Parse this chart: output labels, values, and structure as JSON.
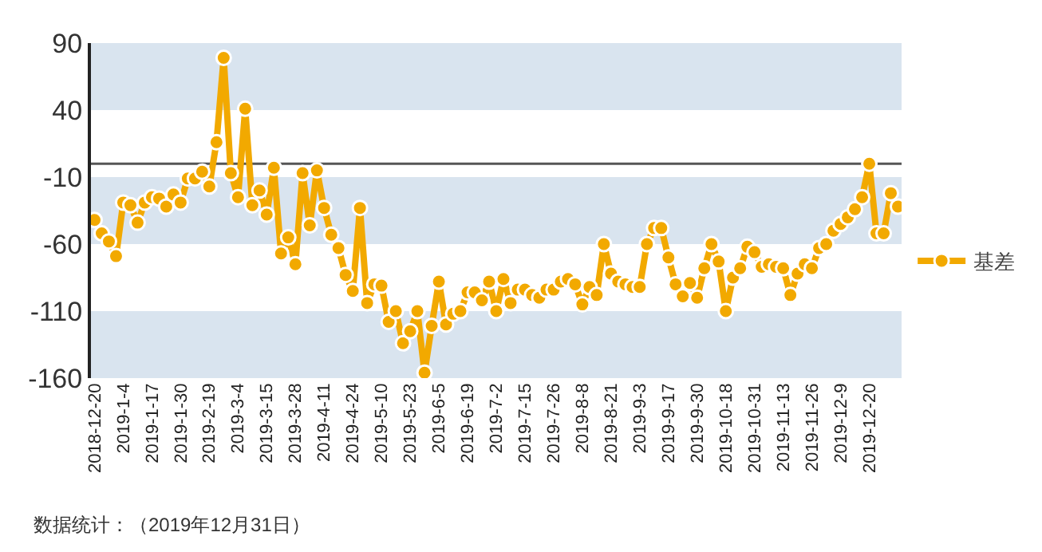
{
  "chart_data": {
    "type": "line",
    "categories": [
      "2018-12-20",
      null,
      null,
      null,
      "2019-1-4",
      null,
      null,
      null,
      "2019-1-17",
      null,
      null,
      null,
      "2019-1-30",
      null,
      null,
      null,
      "2019-2-19",
      null,
      null,
      null,
      "2019-3-4",
      null,
      null,
      null,
      "2019-3-15",
      null,
      null,
      null,
      "2019-3-28",
      null,
      null,
      null,
      "2019-4-11",
      null,
      null,
      null,
      "2019-4-24",
      null,
      null,
      null,
      "2019-5-10",
      null,
      null,
      null,
      "2019-5-23",
      null,
      null,
      null,
      "2019-6-5",
      null,
      null,
      null,
      "2019-6-19",
      null,
      null,
      null,
      "2019-7-2",
      null,
      null,
      null,
      "2019-7-15",
      null,
      null,
      null,
      "2019-7-26",
      null,
      null,
      null,
      "2019-8-8",
      null,
      null,
      null,
      "2019-8-21",
      null,
      null,
      null,
      "2019-9-3",
      null,
      null,
      null,
      "2019-9-17",
      null,
      null,
      null,
      "2019-9-30",
      null,
      null,
      null,
      "2019-10-18",
      null,
      null,
      null,
      "2019-10-31",
      null,
      null,
      null,
      "2019-11-13",
      null,
      null,
      null,
      "2019-11-26",
      null,
      null,
      null,
      "2019-12-9",
      null,
      null,
      null,
      "2019-12-20",
      null,
      null,
      null,
      null
    ],
    "series": [
      {
        "name": "基差",
        "color": "#f2a900",
        "values": [
          -42,
          -52,
          -58,
          -69,
          -29,
          -31,
          -44,
          -29,
          -25,
          -26,
          -32,
          -23,
          -29,
          -11,
          -11,
          -6,
          -17,
          16,
          79,
          -7,
          -25,
          41,
          -31,
          -20,
          -38,
          -3,
          -67,
          -55,
          -75,
          -7,
          -46,
          -5,
          -33,
          -53,
          -63,
          -83,
          -95,
          -33,
          -104,
          -90,
          -91,
          -118,
          -110,
          -134,
          -125,
          -110,
          -156,
          -121,
          -88,
          -120,
          -112,
          -110,
          -96,
          -96,
          -102,
          -88,
          -110,
          -86,
          -104,
          -94,
          -94,
          -98,
          -100,
          -94,
          -94,
          -88,
          -86,
          -90,
          -105,
          -92,
          -98,
          -60,
          -82,
          -88,
          -90,
          -92,
          -92,
          -60,
          -48,
          -48,
          -70,
          -90,
          -99,
          -89,
          -100,
          -78,
          -60,
          -73,
          -110,
          -85,
          -78,
          -62,
          -66,
          -77,
          -75,
          -77,
          -78,
          -98,
          -82,
          -75,
          -78,
          -63,
          -60,
          -50,
          -45,
          -40,
          -34,
          -25,
          0,
          -52,
          -52,
          -22,
          -32
        ]
      }
    ],
    "ylim": [
      -160,
      90
    ],
    "yticks": [
      -160,
      -110,
      -60,
      -10,
      40,
      90
    ],
    "bands": [
      {
        "axis": "y",
        "from": 40,
        "to": 90,
        "color": "#d9e4ef"
      },
      {
        "axis": "y",
        "from": -60,
        "to": -10,
        "color": "#d9e4ef"
      },
      {
        "axis": "y",
        "from": -160,
        "to": -110,
        "color": "#d9e4ef"
      }
    ],
    "legend": "right",
    "marker": "circle",
    "line_style": "solid",
    "ref_lines": [
      {
        "axis": "y",
        "value": 0,
        "color": "#555555"
      }
    ],
    "annotations": [
      "数据统计：（2019年12月31日）"
    ]
  }
}
